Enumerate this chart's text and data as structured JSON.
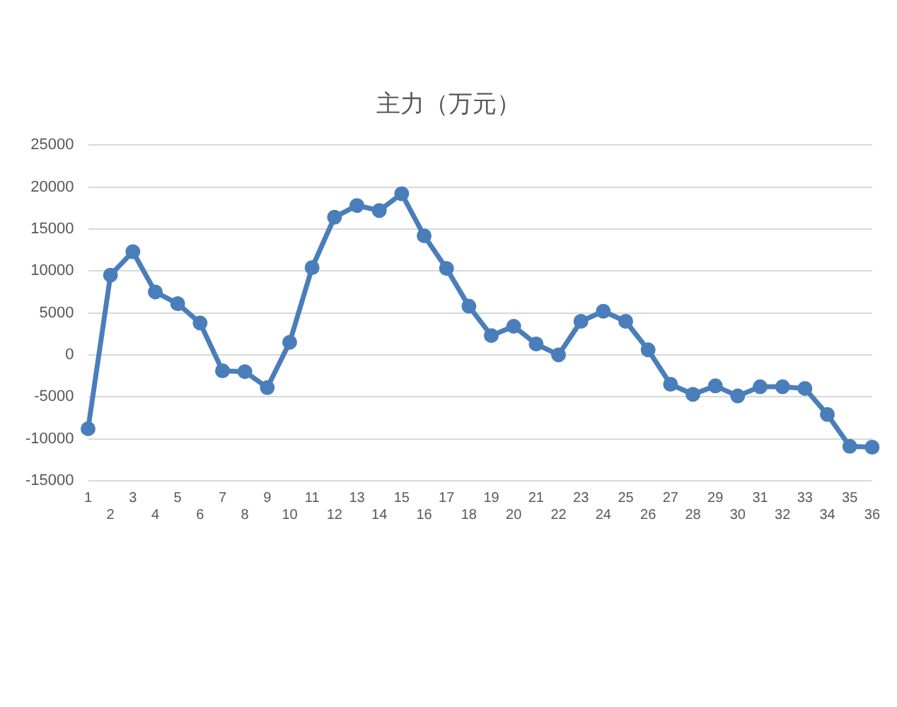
{
  "chart_data": {
    "type": "line",
    "title": "主力（万元）",
    "categories": [
      "1",
      "2",
      "3",
      "4",
      "5",
      "6",
      "7",
      "8",
      "9",
      "10",
      "11",
      "12",
      "13",
      "14",
      "15",
      "16",
      "17",
      "18",
      "19",
      "20",
      "21",
      "22",
      "23",
      "24",
      "25",
      "26",
      "27",
      "28",
      "29",
      "30",
      "31",
      "32",
      "33",
      "34",
      "35",
      "36"
    ],
    "series": [
      {
        "color": "#4a7ebb",
        "values": [
          -8800,
          9500,
          12300,
          7500,
          6100,
          3800,
          -1900,
          -2000,
          -3900,
          1500,
          10400,
          16400,
          17800,
          17200,
          19200,
          14200,
          10300,
          5800,
          2300,
          3400,
          1300,
          0,
          4000,
          5200,
          4000,
          600,
          -3500,
          -4700,
          -3700,
          -4900,
          -3800,
          -3800,
          -4000,
          -7100,
          -10900,
          -11000
        ]
      }
    ],
    "ylim": [
      -15000,
      25000
    ],
    "yticks": [
      -15000,
      -10000,
      -5000,
      0,
      5000,
      10000,
      15000,
      20000,
      25000
    ],
    "grid": "y",
    "legend": false,
    "marker": "circle",
    "line_style": "solid"
  }
}
